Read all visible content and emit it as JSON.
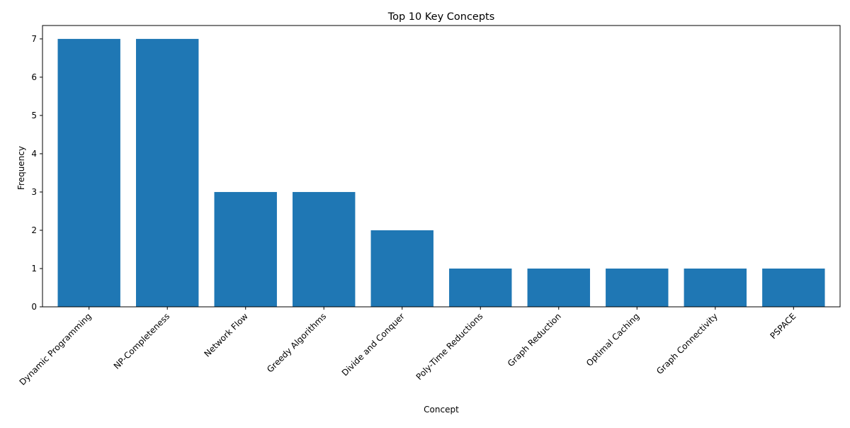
{
  "chart_data": {
    "type": "bar",
    "title": "Top 10 Key Concepts",
    "xlabel": "Concept",
    "ylabel": "Frequency",
    "categories": [
      "Dynamic Programming",
      "NP-Completeness",
      "Network Flow",
      "Greedy Algorithms",
      "Divide and Conquer",
      "Poly-Time Reductions",
      "Graph Reduction",
      "Optimal Caching",
      "Graph Connectivity",
      "PSPACE"
    ],
    "values": [
      7,
      7,
      3,
      3,
      2,
      1,
      1,
      1,
      1,
      1
    ],
    "ylim": [
      0,
      7.35
    ],
    "yticks": [
      0,
      1,
      2,
      3,
      4,
      5,
      6,
      7
    ],
    "grid": false,
    "bar_color": "#1f77b4"
  }
}
